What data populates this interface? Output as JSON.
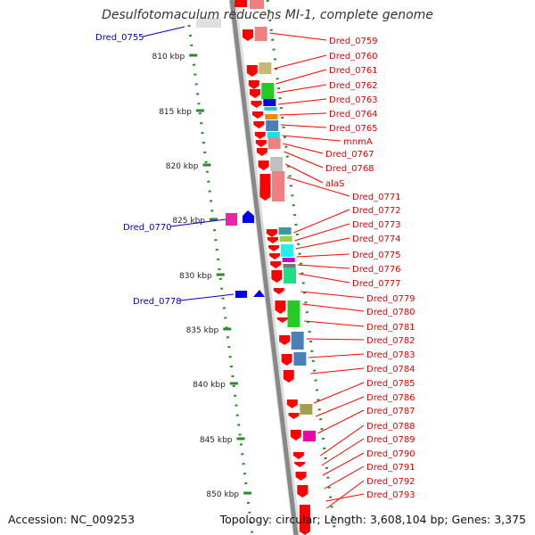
{
  "title": "Desulfotomaculum reducens MI-1, complete genome",
  "footer": {
    "accession": "Accession: NC_009253",
    "topology": "Topology: circular; Length: 3,608,104 bp; Genes: 3,375"
  },
  "scale_labels": [
    "810 kbp",
    "815 kbp",
    "820 kbp",
    "825 kbp",
    "830 kbp",
    "835 kbp",
    "840 kbp",
    "845 kbp",
    "850 kbp"
  ],
  "left_labels": [
    "Dred_0755",
    "Dred_0770",
    "Dred_0778"
  ],
  "right_labels": [
    "Dred_0759",
    "Dred_0760",
    "Dred_0761",
    "Dred_0762",
    "Dred_0763",
    "Dred_0764",
    "Dred_0765",
    "mnmA",
    "Dred_0767",
    "Dred_0768",
    "alaS",
    "Dred_0771",
    "Dred_0772",
    "Dred_0773",
    "Dred_0774",
    "Dred_0775",
    "Dred_0776",
    "Dred_0777",
    "Dred_0779",
    "Dred_0780",
    "Dred_0781",
    "Dred_0782",
    "Dred_0783",
    "Dred_0784",
    "Dred_0785",
    "Dred_0786",
    "Dred_0787",
    "Dred_0788",
    "Dred_0789",
    "Dred_0790",
    "Dred_0791",
    "Dred_0792",
    "Dred_0793"
  ],
  "colors": {
    "forward_label": "#e00000",
    "reverse_label": "#0000c0",
    "scale_tick": "#2a8a2a",
    "backbone": "#999999"
  }
}
